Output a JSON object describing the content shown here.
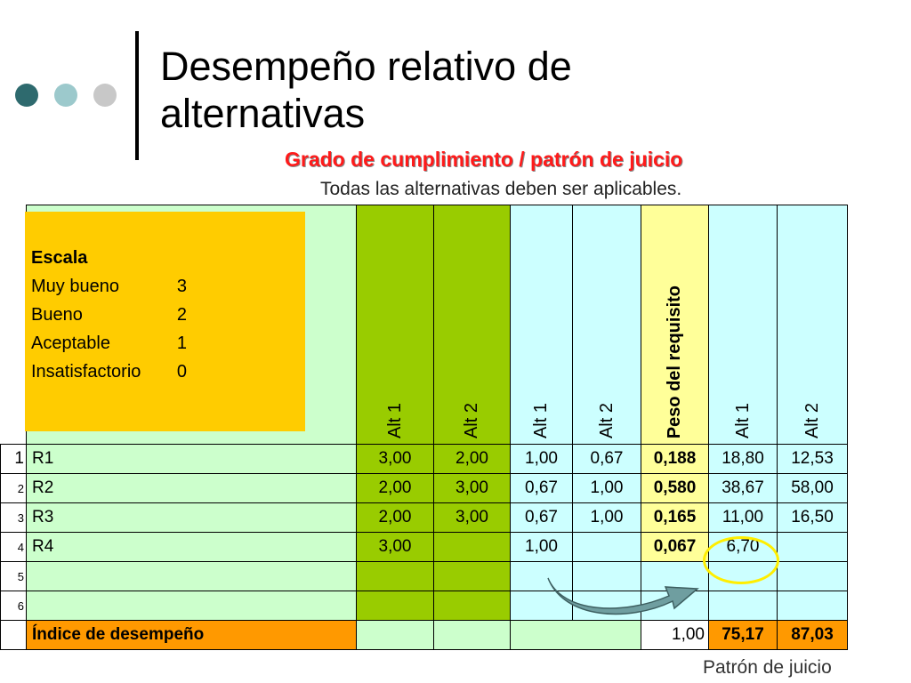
{
  "slide": {
    "title_line1": "Desempeño relativo de",
    "title_line2": "alternativas",
    "subtitle": "Grado de cumplimiento / patrón de juicio",
    "note": "Todas las alternativas deben ser aplicables.",
    "footer": "Patrón de juicio",
    "dot_colors": [
      "#2e6a6e",
      "#9cc9cc",
      "#c8c8c8"
    ]
  },
  "scale": {
    "heading": "Escala",
    "items": [
      {
        "label": "Muy bueno",
        "value": "3"
      },
      {
        "label": "Bueno",
        "value": "2"
      },
      {
        "label": "Aceptable",
        "value": "1"
      },
      {
        "label": "Insatisfactorio",
        "value": "0"
      }
    ]
  },
  "table": {
    "headers": [
      "Alt 1",
      "Alt 2",
      "Alt 1",
      "Alt 2",
      "Peso del requisito",
      "Alt 1",
      "Alt 2"
    ],
    "rows": [
      {
        "num": "1",
        "req": "R1",
        "a1": "3,00",
        "a2": "2,00",
        "g1": "1,00",
        "g2": "0,67",
        "w": "0,188",
        "s1": "18,80",
        "s2": "12,53"
      },
      {
        "num": "2",
        "req": "R2",
        "a1": "2,00",
        "a2": "3,00",
        "g1": "0,67",
        "g2": "1,00",
        "w": "0,580",
        "s1": "38,67",
        "s2": "58,00"
      },
      {
        "num": "3",
        "req": "R3",
        "a1": "2,00",
        "a2": "3,00",
        "g1": "0,67",
        "g2": "1,00",
        "w": "0,165",
        "s1": "11,00",
        "s2": "16,50"
      },
      {
        "num": "4",
        "req": "R4",
        "a1": "3,00",
        "a2": "",
        "g1": "1,00",
        "g2": "",
        "w": "0,067",
        "s1": "6,70",
        "s2": ""
      },
      {
        "num": "5",
        "req": "",
        "a1": "",
        "a2": "",
        "g1": "",
        "g2": "",
        "w": "",
        "s1": "",
        "s2": ""
      },
      {
        "num": "6",
        "req": "",
        "a1": "",
        "a2": "",
        "g1": "",
        "g2": "",
        "w": "",
        "s1": "",
        "s2": ""
      }
    ],
    "total": {
      "label": "Índice de desempeño",
      "w": "1,00",
      "s1": "75,17",
      "s2": "87,03"
    }
  }
}
